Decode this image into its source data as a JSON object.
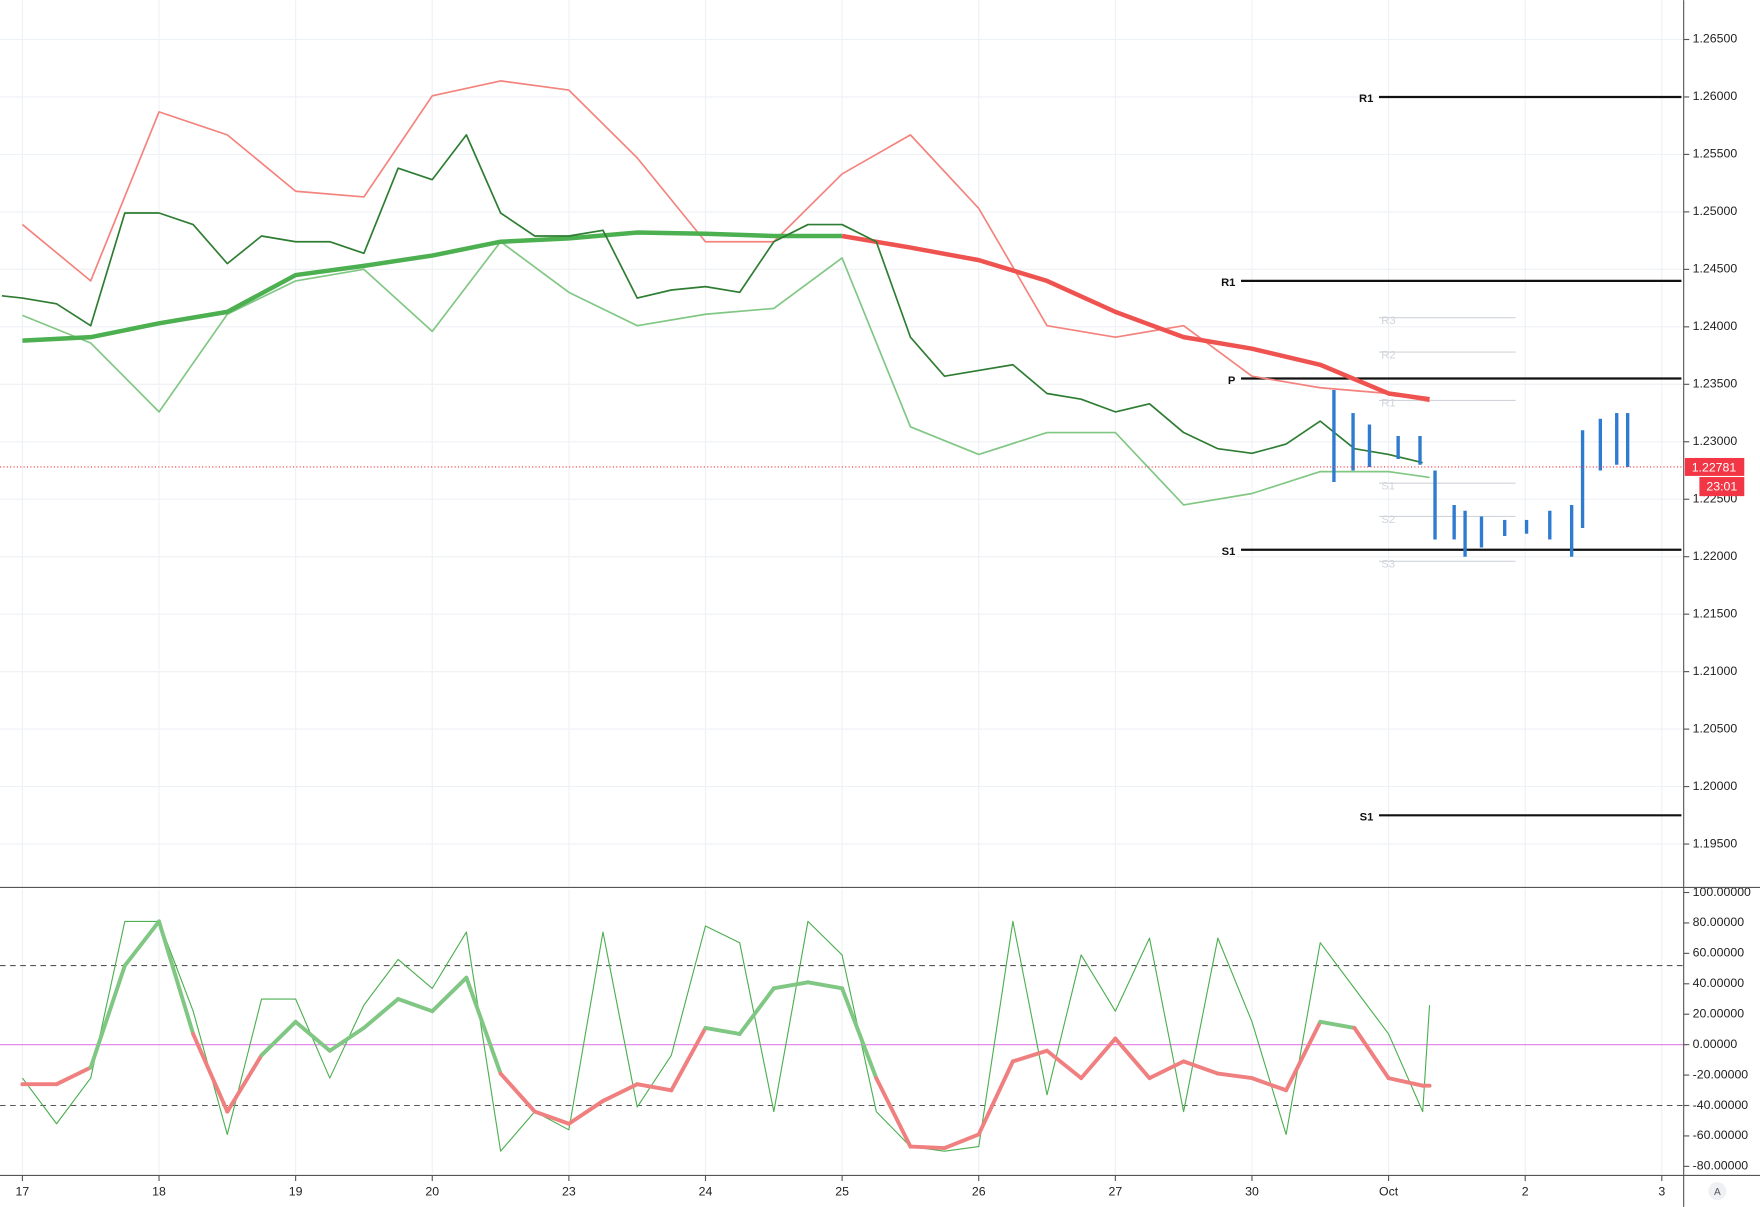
{
  "chart_data": [
    {
      "type": "line",
      "pane": "price",
      "xlim": [
        -0.164,
        12.16
      ],
      "ylim": [
        1.19127,
        1.26842
      ],
      "grid": true,
      "xticks": [
        {
          "value": 0,
          "label": "17"
        },
        {
          "value": 1,
          "label": "18"
        },
        {
          "value": 2,
          "label": "19"
        },
        {
          "value": 3,
          "label": "20"
        },
        {
          "value": 4,
          "label": "23"
        },
        {
          "value": 5,
          "label": "24"
        },
        {
          "value": 6,
          "label": "25"
        },
        {
          "value": 7,
          "label": "26"
        },
        {
          "value": 8,
          "label": "27"
        },
        {
          "value": 9,
          "label": "30"
        },
        {
          "value": 10,
          "label": "Oct"
        },
        {
          "value": 11,
          "label": "2"
        },
        {
          "value": 12,
          "label": "3"
        }
      ],
      "yticks": [
        {
          "value": 1.265,
          "label": "1.26500"
        },
        {
          "value": 1.26,
          "label": "1.26000"
        },
        {
          "value": 1.255,
          "label": "1.25500"
        },
        {
          "value": 1.25,
          "label": "1.25000"
        },
        {
          "value": 1.245,
          "label": "1.24500"
        },
        {
          "value": 1.24,
          "label": "1.24000"
        },
        {
          "value": 1.235,
          "label": "1.23500"
        },
        {
          "value": 1.23,
          "label": "1.23000"
        },
        {
          "value": 1.225,
          "label": "1.22500"
        },
        {
          "value": 1.22,
          "label": "1.22000"
        },
        {
          "value": 1.215,
          "label": "1.21500"
        },
        {
          "value": 1.21,
          "label": "1.21000"
        },
        {
          "value": 1.205,
          "label": "1.20500"
        },
        {
          "value": 1.2,
          "label": "1.20000"
        },
        {
          "value": 1.195,
          "label": "1.19500"
        }
      ],
      "series": [
        {
          "color": "#f4837d",
          "line_width": 1.5,
          "x": [
            0,
            0.5,
            1,
            1.5,
            2,
            2.5,
            3,
            3.5,
            4,
            4.5,
            5,
            5.5,
            6,
            6.5,
            7,
            7.5,
            8,
            8.5,
            9,
            9.5,
            10,
            10.3
          ],
          "values": [
            1.2489,
            1.244,
            1.2587,
            1.2567,
            1.2518,
            1.2513,
            1.2601,
            1.2614,
            1.2606,
            1.2547,
            1.2474,
            1.2474,
            1.2533,
            1.2567,
            1.2503,
            1.2401,
            1.2391,
            1.2401,
            1.2357,
            1.2347,
            1.2342,
            1.2335
          ]
        },
        {
          "color": "#81c784",
          "line_width": 1.5,
          "x": [
            0,
            0.5,
            1,
            1.5,
            2,
            2.5,
            3,
            3.5,
            4,
            4.5,
            5,
            5.5,
            6,
            6.5,
            7,
            7.5,
            8,
            8.5,
            9,
            9.5,
            10,
            10.3
          ],
          "values": [
            1.241,
            1.2386,
            1.2326,
            1.2411,
            1.244,
            1.245,
            1.2396,
            1.2474,
            1.243,
            1.2401,
            1.2411,
            1.2416,
            1.246,
            1.2313,
            1.2289,
            1.2308,
            1.2308,
            1.2245,
            1.2255,
            1.2274,
            1.2274,
            1.2269
          ]
        },
        {
          "color": "#4caf50",
          "line_width": 4,
          "x": [
            0,
            0.5,
            1,
            1.5,
            2,
            2.5,
            3,
            3.5,
            4,
            4.5,
            5,
            5.5,
            6
          ],
          "values": [
            1.2388,
            1.2391,
            1.2403,
            1.2413,
            1.2445,
            1.2453,
            1.2462,
            1.2474,
            1.2477,
            1.2482,
            1.2481,
            1.2479,
            1.2479
          ]
        },
        {
          "color": "#ef5350",
          "line_width": 4,
          "x": [
            6,
            6.5,
            7,
            7.5,
            8,
            8.5,
            9,
            9.5,
            10,
            10.3
          ],
          "values": [
            1.2479,
            1.2469,
            1.2458,
            1.244,
            1.2413,
            1.2391,
            1.2381,
            1.2367,
            1.2342,
            1.2337
          ]
        },
        {
          "color": "#2e7d32",
          "line_width": 1.5,
          "x": [
            -0.15,
            0,
            0.25,
            0.5,
            0.75,
            1,
            1.25,
            1.5,
            1.75,
            2,
            2.25,
            2.5,
            2.75,
            3,
            3.25,
            3.5,
            3.75,
            4,
            4.25,
            4.5,
            4.75,
            5,
            5.25,
            5.5,
            5.75,
            6,
            6.25,
            6.5,
            6.75,
            7,
            7.25,
            7.5,
            7.75,
            8,
            8.25,
            8.5,
            8.75,
            9,
            9.25,
            9.5,
            9.75,
            10,
            10.25
          ],
          "values": [
            1.2427,
            1.2425,
            1.242,
            1.2401,
            1.2499,
            1.2499,
            1.2489,
            1.2455,
            1.2479,
            1.2474,
            1.2474,
            1.2464,
            1.2538,
            1.2528,
            1.2567,
            1.2499,
            1.2479,
            1.2479,
            1.2484,
            1.2425,
            1.2432,
            1.2435,
            1.243,
            1.2474,
            1.2489,
            1.2489,
            1.2474,
            1.2391,
            1.2357,
            1.2362,
            1.2367,
            1.2342,
            1.2337,
            1.2326,
            1.2333,
            1.2308,
            1.2294,
            1.229,
            1.2298,
            1.2318,
            1.2294,
            1.2289,
            1.22818
          ]
        }
      ],
      "levels": [
        {
          "label": "R1",
          "value": 1.26,
          "start": 9.93
        },
        {
          "label": "R1",
          "value": 1.244,
          "start": 8.92
        },
        {
          "label": "P",
          "value": 1.2355,
          "start": 8.92
        },
        {
          "label": "S1",
          "value": 1.2206,
          "start": 8.92
        },
        {
          "label": "S1",
          "value": 1.1975,
          "start": 9.93
        },
        {
          "label": "R3",
          "value": 1.2408,
          "start": 9.93,
          "end": 10.93,
          "faded": true
        },
        {
          "label": "R2",
          "value": 1.2378,
          "start": 9.93,
          "end": 10.93,
          "faded": true
        },
        {
          "label": "R1",
          "value": 1.2336,
          "start": 9.93,
          "end": 10.93,
          "faded": true
        },
        {
          "label": "S1",
          "value": 1.2264,
          "start": 9.93,
          "end": 10.93,
          "faded": true
        },
        {
          "label": "S2",
          "value": 1.2235,
          "start": 9.93,
          "end": 10.93,
          "faded": true
        },
        {
          "label": "S3",
          "value": 1.2196,
          "start": 9.93,
          "end": 10.93,
          "faded": true
        }
      ],
      "forecast_bars": {
        "color": "#2f7bd0",
        "x": [
          9.6,
          9.74,
          9.86,
          10.07,
          10.23,
          10.34,
          10.48,
          10.56,
          10.68,
          10.85,
          11.01,
          11.18,
          11.34,
          11.42,
          11.55,
          11.67,
          11.75
        ],
        "low": [
          1.2265,
          1.2275,
          1.2278,
          1.2285,
          1.228,
          1.2215,
          1.2215,
          1.22,
          1.2208,
          1.2218,
          1.222,
          1.2215,
          1.22,
          1.2225,
          1.2275,
          1.228,
          1.2278
        ],
        "high": [
          1.2345,
          1.2325,
          1.2315,
          1.2305,
          1.2305,
          1.2275,
          1.2245,
          1.224,
          1.2235,
          1.2232,
          1.2232,
          1.224,
          1.2245,
          1.231,
          1.232,
          1.2325,
          1.2325
        ]
      },
      "last_price": {
        "value": 1.22781,
        "label": "1.22781",
        "countdown": "23:01",
        "color": "#f23645"
      }
    },
    {
      "type": "line",
      "pane": "oscillator",
      "ylim": [
        -85.2,
        102.2
      ],
      "yticks": [
        {
          "value": 100,
          "label": "100.00000"
        },
        {
          "value": 80,
          "label": "80.00000"
        },
        {
          "value": 60,
          "label": "60.00000"
        },
        {
          "value": 40,
          "label": "40.00000"
        },
        {
          "value": 20,
          "label": "20.00000"
        },
        {
          "value": 0,
          "label": "0.00000"
        },
        {
          "value": -20,
          "label": "-20.00000"
        },
        {
          "value": -40,
          "label": "-40.00000"
        },
        {
          "value": -60,
          "label": "-60.00000"
        },
        {
          "value": -80,
          "label": "-80.00000"
        }
      ],
      "hlines": [
        {
          "value": 52,
          "color": "#555555",
          "dashed": true
        },
        {
          "value": 0,
          "color": "#e27ce8",
          "dashed": false
        },
        {
          "value": -40,
          "color": "#555555",
          "dashed": true
        }
      ],
      "series": [
        {
          "color": "#4caf50",
          "line_width": 1,
          "x": [
            0,
            0.25,
            0.5,
            0.75,
            1,
            1.25,
            1.5,
            1.75,
            2,
            2.25,
            2.5,
            2.75,
            3,
            3.25,
            3.5,
            3.75,
            4,
            4.25,
            4.5,
            4.75,
            5,
            5.25,
            5.5,
            5.75,
            6,
            6.25,
            6.5,
            6.75,
            7,
            7.25,
            7.5,
            7.75,
            8,
            8.25,
            8.5,
            8.75,
            9,
            9.25,
            9.5,
            9.75,
            10,
            10.25,
            10.3
          ],
          "values": [
            -22,
            -52,
            -22,
            81,
            81,
            22,
            -59,
            30,
            30,
            -22,
            26,
            56,
            37,
            74,
            -70,
            -44,
            -56,
            74,
            -41,
            -7,
            78,
            67,
            -44,
            81,
            59,
            -44,
            -67,
            -70,
            -67,
            81,
            -33,
            59,
            22,
            70,
            -44,
            70,
            15,
            -59,
            67,
            37,
            7,
            -44,
            26
          ]
        },
        {
          "color": "#f08080",
          "up_color": "#81c784",
          "line_width": 3.5,
          "x": [
            0,
            0.25,
            0.5,
            0.75,
            1,
            1.25,
            1.5,
            1.75,
            2,
            2.25,
            2.5,
            2.75,
            3,
            3.25,
            3.5,
            3.75,
            4,
            4.25,
            4.5,
            4.75,
            5,
            5.25,
            5.5,
            5.75,
            6,
            6.25,
            6.5,
            6.75,
            7,
            7.25,
            7.5,
            7.75,
            8,
            8.25,
            8.5,
            8.75,
            9,
            9.25,
            9.5,
            9.75,
            10,
            10.25,
            10.3
          ],
          "values": [
            -26,
            -26,
            -15,
            52,
            81,
            7,
            -44,
            -7,
            15,
            -4,
            11,
            30,
            22,
            44,
            -19,
            -44,
            -52,
            -37,
            -26,
            -30,
            11,
            7,
            37,
            41,
            37,
            -22,
            -67,
            -68,
            -59,
            -11,
            -4,
            -22,
            4,
            -22,
            -11,
            -19,
            -22,
            -30,
            15,
            11,
            -22,
            -27,
            -27
          ]
        }
      ]
    }
  ],
  "auto_button": "A"
}
